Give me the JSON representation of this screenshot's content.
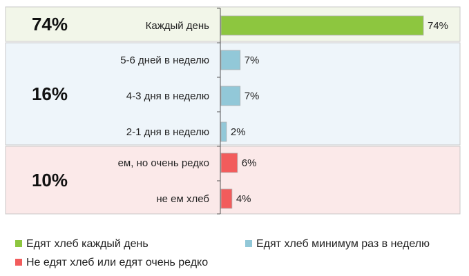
{
  "chart_data": {
    "type": "bar",
    "orientation": "horizontal",
    "unit": "%",
    "xlim": [
      0,
      74
    ],
    "groups": [
      {
        "percent_label": "74%",
        "color": "#8DC63F",
        "background": "#F2F6E9",
        "items": [
          {
            "label": "Каждый день",
            "value": 74,
            "value_label": "74%"
          }
        ]
      },
      {
        "percent_label": "16%",
        "color": "#92C8D8",
        "background": "#EEF5FA",
        "items": [
          {
            "label": "5-6 дней в неделю",
            "value": 7,
            "value_label": "7%"
          },
          {
            "label": "4-3 дня в неделю",
            "value": 7,
            "value_label": "7%"
          },
          {
            "label": "2-1 дня в неделю",
            "value": 2,
            "value_label": "2%"
          }
        ]
      },
      {
        "percent_label": "10%",
        "color": "#F25C5C",
        "background": "#FBE9E9",
        "items": [
          {
            "label": "ем, но очень редко",
            "value": 6,
            "value_label": "6%"
          },
          {
            "label": "не ем хлеб",
            "value": 4,
            "value_label": "4%"
          }
        ]
      }
    ],
    "legend": {
      "placement": "bottom",
      "entries": [
        {
          "label": "Едят хлеб каждый день",
          "color": "#8DC63F"
        },
        {
          "label": "Едят хлеб минимум раз в неделю",
          "color": "#92C8D8"
        },
        {
          "label": "Не едят хлеб или едят очень редко",
          "color": "#F25C5C"
        }
      ]
    }
  }
}
